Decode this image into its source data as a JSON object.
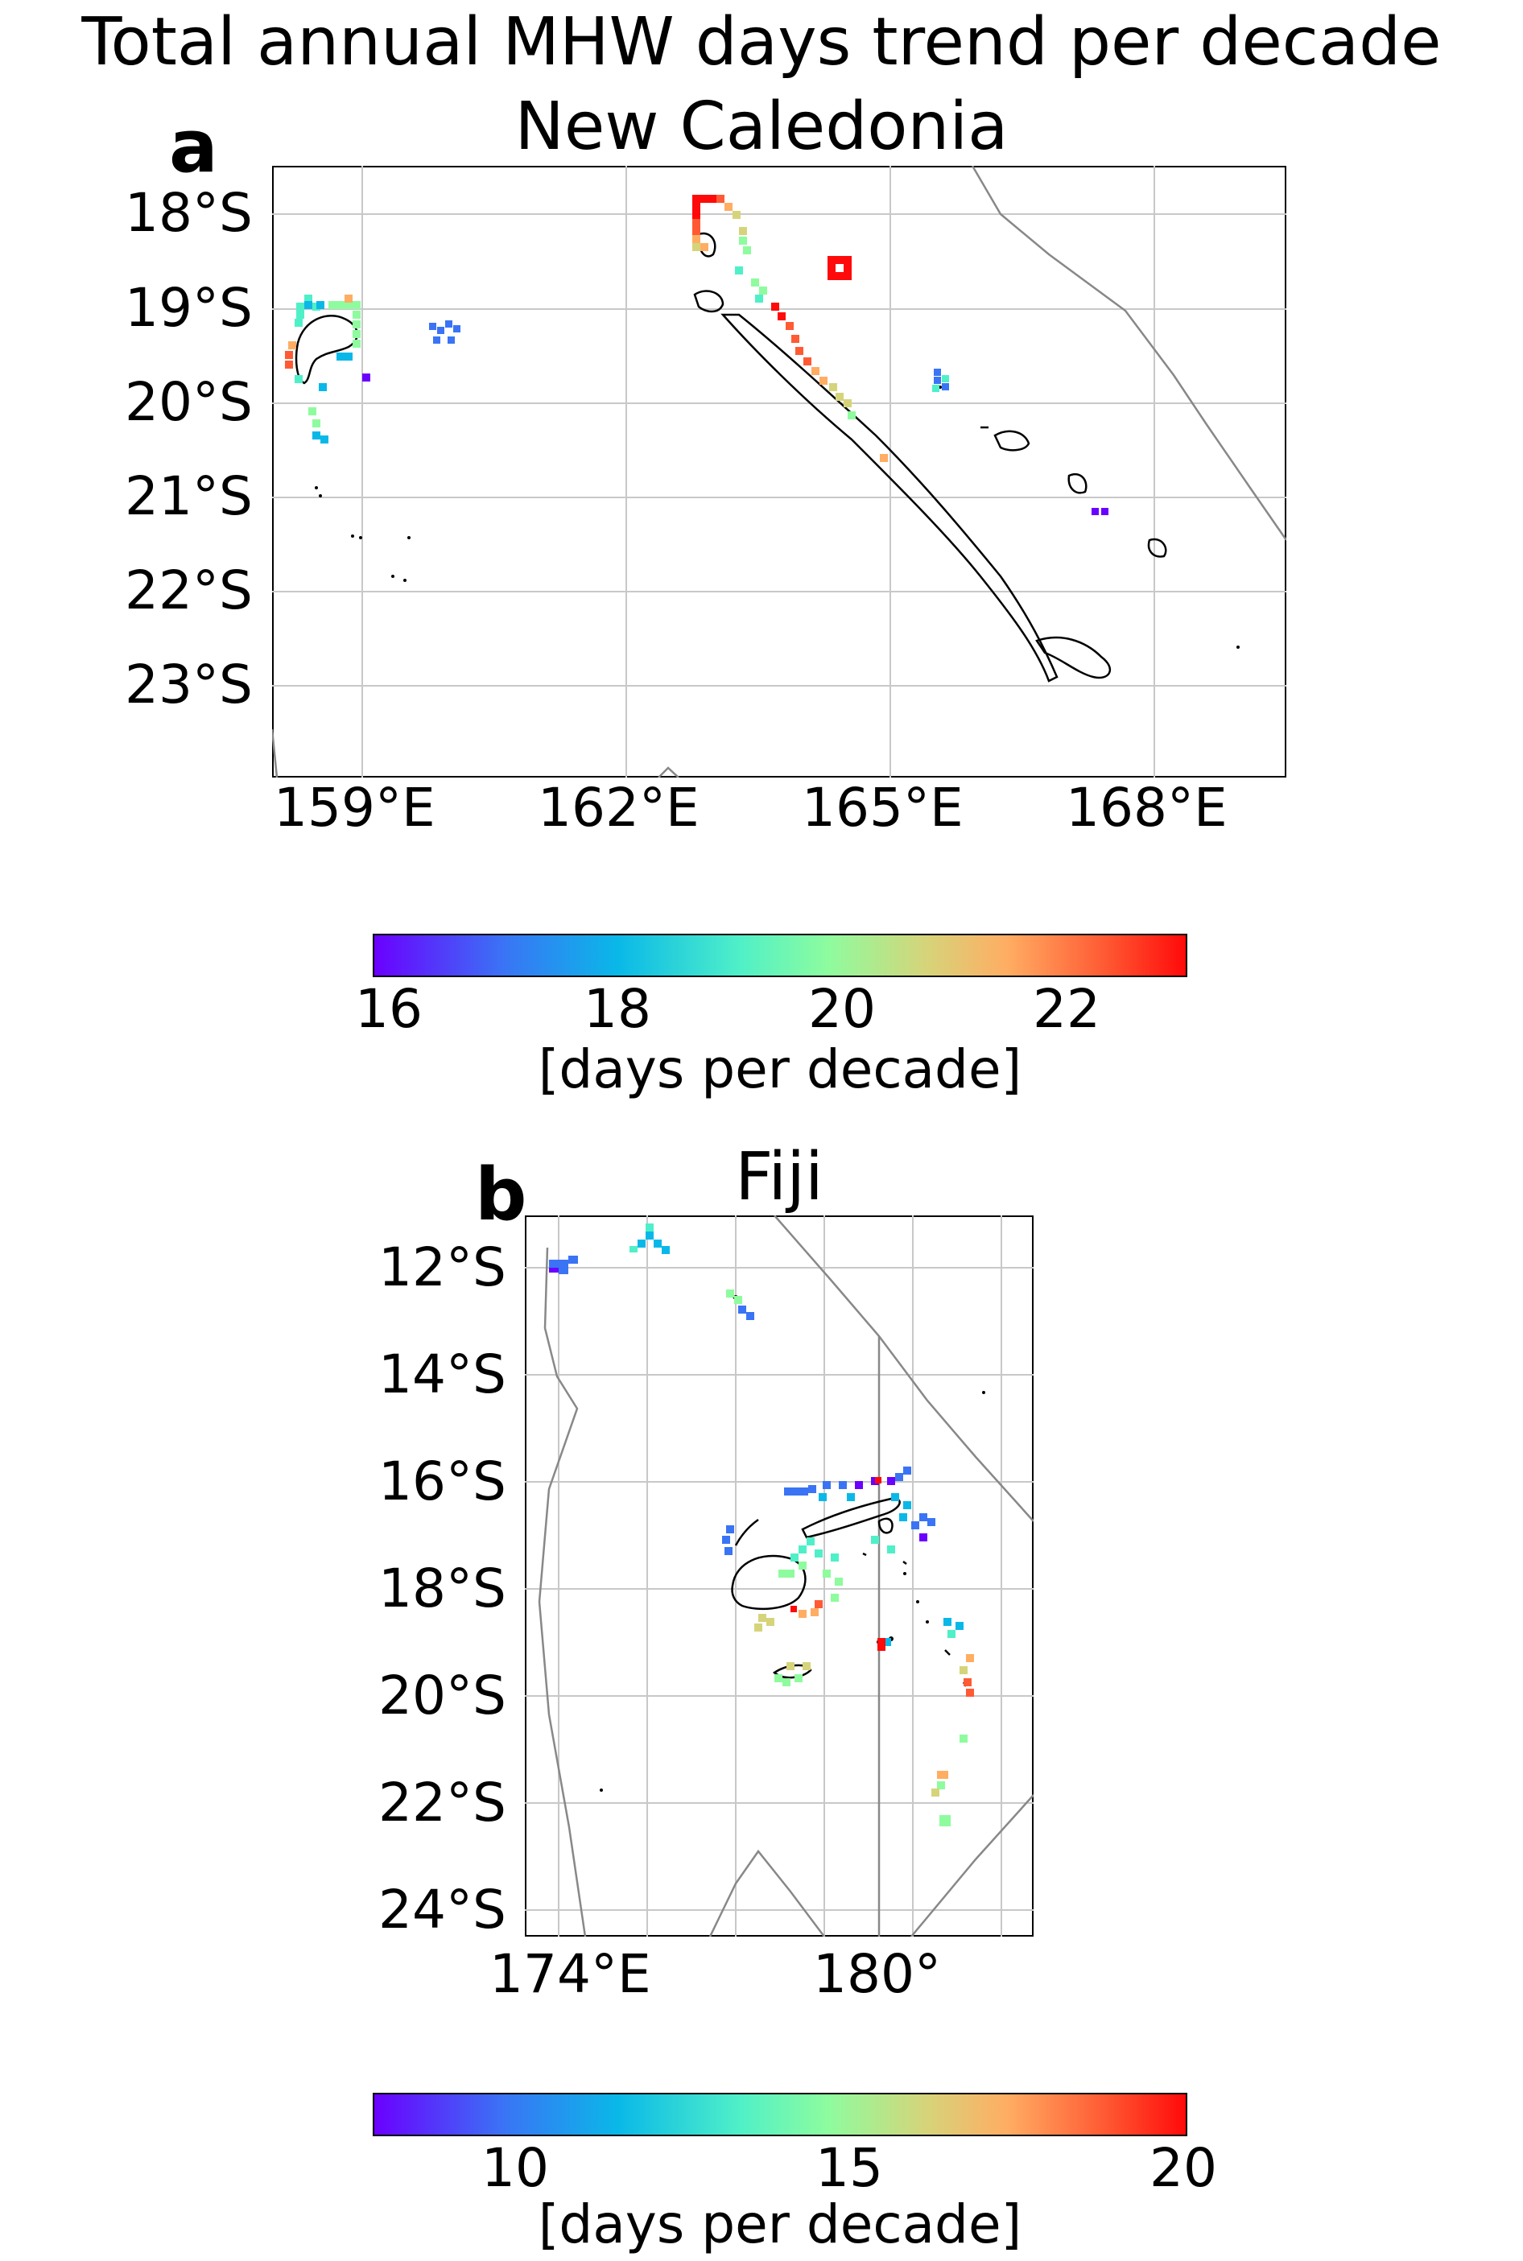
{
  "figure": {
    "title_line1": "Total annual MHW days trend per decade",
    "title_line2": "New Caledonia"
  },
  "panel_a": {
    "label": "a",
    "region": "New Caledonia",
    "y_ticks": [
      "18°S",
      "19°S",
      "20°S",
      "21°S",
      "22°S",
      "23°S"
    ],
    "x_ticks": [
      "159°E",
      "162°E",
      "165°E",
      "168°E"
    ],
    "colorbar": {
      "ticks": [
        "16",
        "18",
        "20",
        "22"
      ],
      "label": "[days per decade]",
      "colormap": "rainbow"
    }
  },
  "panel_b": {
    "label": "b",
    "title": "Fiji",
    "region": "Fiji",
    "y_ticks": [
      "12°S",
      "14°S",
      "16°S",
      "18°S",
      "20°S",
      "22°S",
      "24°S"
    ],
    "x_ticks": [
      "174°E",
      "180°"
    ],
    "colorbar": {
      "ticks": [
        "10",
        "15",
        "20"
      ],
      "label": "[days per decade]",
      "colormap": "rainbow"
    }
  },
  "colors": {
    "gridline": "#c8c8c8",
    "coastline": "#000000",
    "eez_boundary": "#888888",
    "colormap_stops": [
      "#6a00ff",
      "#3a74f5",
      "#0ab8e8",
      "#4ff0c8",
      "#8efc9e",
      "#d6d47a",
      "#ffad63",
      "#ff5a33",
      "#ff0a0a"
    ]
  }
}
